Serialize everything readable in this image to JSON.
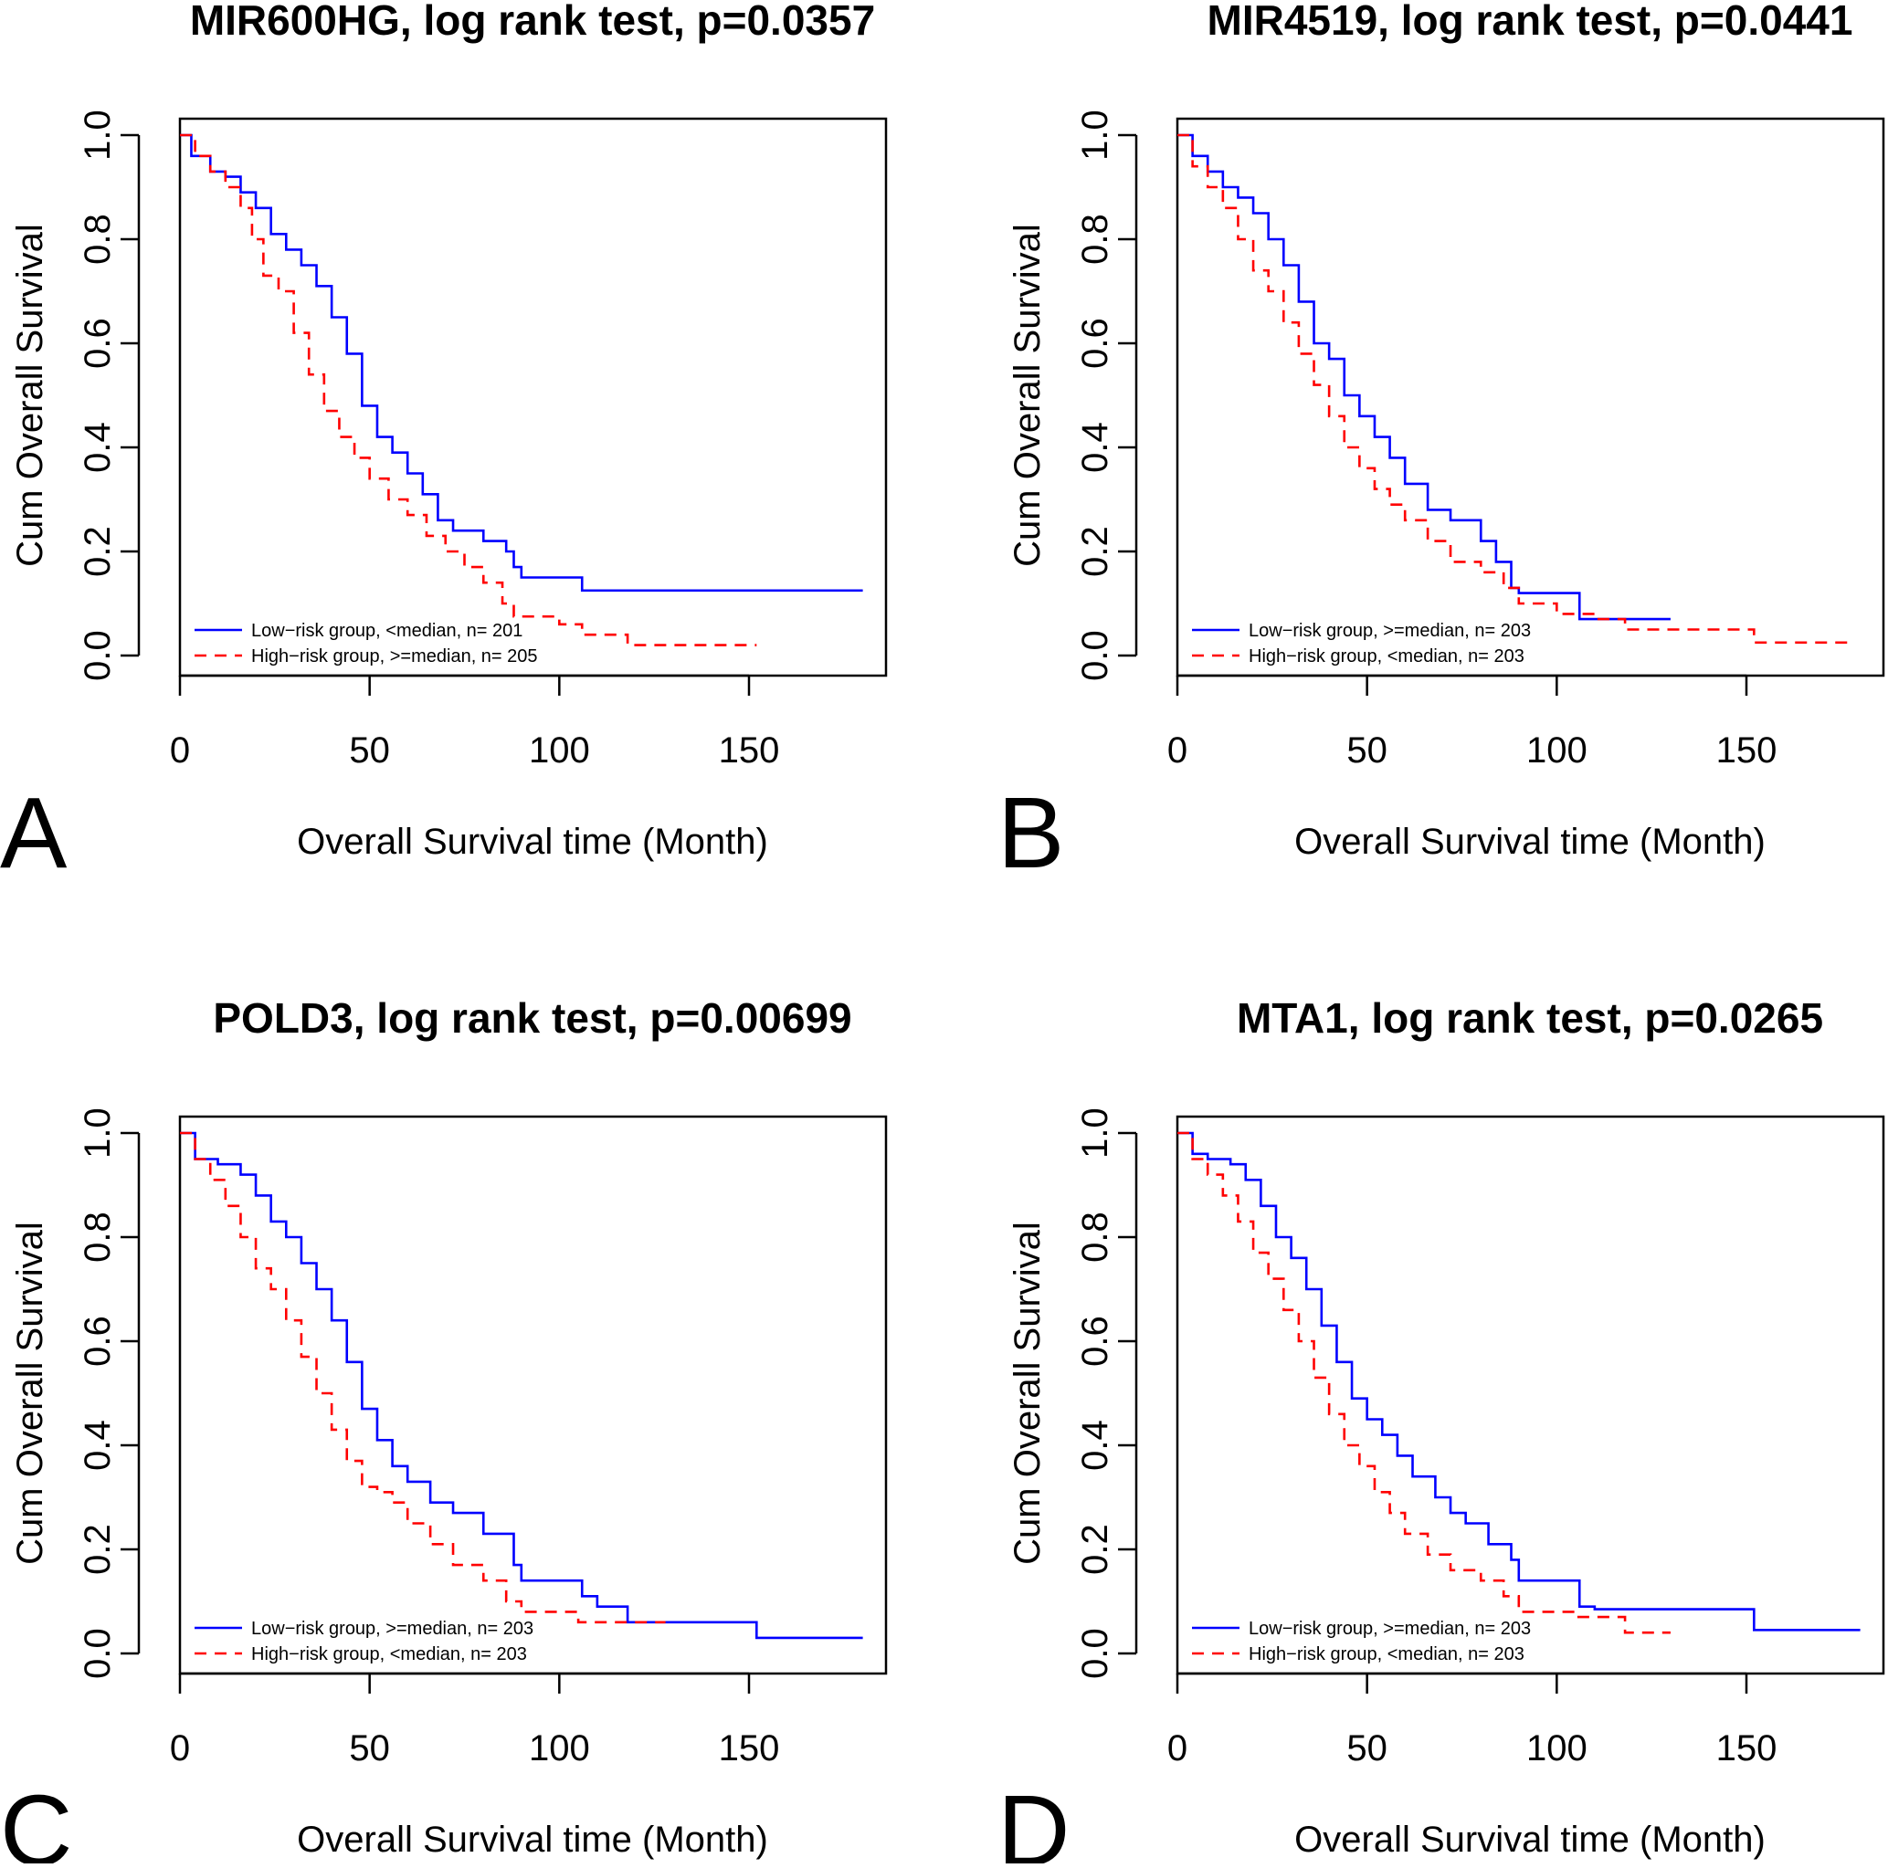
{
  "figure": {
    "colors": {
      "low": "#0000ff",
      "high": "#ff0000",
      "axis": "#000000"
    }
  },
  "chart_data": [
    {
      "type": "line",
      "panel": "A",
      "title": "MIR600HG, log rank test, p=0.0357",
      "xlabel": "Overall Survival time (Month)",
      "ylabel": "Cum Overall Survival",
      "xlim": [
        0,
        185
      ],
      "ylim": [
        0,
        1.0
      ],
      "xticks": [
        "0",
        "50",
        "100",
        "150"
      ],
      "yticks": [
        "0.0",
        "0.2",
        "0.4",
        "0.6",
        "0.8",
        "1.0"
      ],
      "series": [
        {
          "name": "Low−risk group, <median, n= 201",
          "color": "#0000ff",
          "dash": false,
          "x": [
            0,
            3,
            8,
            12,
            16,
            20,
            24,
            28,
            32,
            36,
            40,
            44,
            48,
            52,
            56,
            60,
            64,
            68,
            72,
            80,
            86,
            88,
            90,
            106,
            180
          ],
          "y": [
            1.0,
            0.96,
            0.93,
            0.92,
            0.89,
            0.86,
            0.81,
            0.78,
            0.75,
            0.71,
            0.65,
            0.58,
            0.48,
            0.42,
            0.39,
            0.35,
            0.31,
            0.26,
            0.24,
            0.22,
            0.2,
            0.17,
            0.15,
            0.125,
            0.125
          ]
        },
        {
          "name": "High−risk group, >=median, n= 205",
          "color": "#ff0000",
          "dash": true,
          "x": [
            0,
            4,
            8,
            12,
            16,
            19,
            22,
            26,
            30,
            34,
            38,
            42,
            46,
            50,
            55,
            60,
            65,
            70,
            75,
            80,
            85,
            88,
            90,
            100,
            106,
            118,
            152
          ],
          "y": [
            1.0,
            0.96,
            0.93,
            0.9,
            0.86,
            0.8,
            0.73,
            0.7,
            0.62,
            0.54,
            0.47,
            0.42,
            0.38,
            0.34,
            0.3,
            0.27,
            0.23,
            0.2,
            0.17,
            0.14,
            0.1,
            0.075,
            0.075,
            0.06,
            0.04,
            0.02,
            0.02
          ]
        }
      ]
    },
    {
      "type": "line",
      "panel": "B",
      "title": "MIR4519, log rank test, p=0.0441",
      "xlabel": "Overall Survival time (Month)",
      "ylabel": "Cum Overall Survival",
      "xlim": [
        0,
        185
      ],
      "ylim": [
        0,
        1.0
      ],
      "xticks": [
        "0",
        "50",
        "100",
        "150"
      ],
      "yticks": [
        "0.0",
        "0.2",
        "0.4",
        "0.6",
        "0.8",
        "1.0"
      ],
      "series": [
        {
          "name": "Low−risk group, >=median, n= 203",
          "color": "#0000ff",
          "dash": false,
          "x": [
            0,
            4,
            8,
            12,
            16,
            20,
            24,
            28,
            32,
            36,
            40,
            44,
            48,
            52,
            56,
            60,
            66,
            72,
            80,
            84,
            88,
            90,
            106,
            130
          ],
          "y": [
            1.0,
            0.96,
            0.93,
            0.9,
            0.88,
            0.85,
            0.8,
            0.75,
            0.68,
            0.6,
            0.57,
            0.5,
            0.46,
            0.42,
            0.38,
            0.33,
            0.28,
            0.26,
            0.22,
            0.18,
            0.13,
            0.12,
            0.07,
            0.07
          ]
        },
        {
          "name": "High−risk group, <median, n= 203",
          "color": "#ff0000",
          "dash": true,
          "x": [
            0,
            4,
            8,
            12,
            16,
            20,
            24,
            28,
            32,
            36,
            40,
            44,
            48,
            52,
            56,
            60,
            66,
            72,
            80,
            86,
            90,
            100,
            110,
            118,
            152,
            178
          ],
          "y": [
            1.0,
            0.94,
            0.9,
            0.86,
            0.8,
            0.74,
            0.7,
            0.64,
            0.58,
            0.52,
            0.46,
            0.4,
            0.36,
            0.32,
            0.29,
            0.26,
            0.22,
            0.18,
            0.16,
            0.13,
            0.1,
            0.08,
            0.07,
            0.05,
            0.025,
            0.025
          ]
        }
      ]
    },
    {
      "type": "line",
      "panel": "C",
      "title": "POLD3, log rank test, p=0.00699",
      "xlabel": "Overall Survival time (Month)",
      "ylabel": "Cum Overall Survival",
      "xlim": [
        0,
        185
      ],
      "ylim": [
        0,
        1.0
      ],
      "xticks": [
        "0",
        "50",
        "100",
        "150"
      ],
      "yticks": [
        "0.0",
        "0.2",
        "0.4",
        "0.6",
        "0.8",
        "1.0"
      ],
      "series": [
        {
          "name": "Low−risk group, >=median, n= 203",
          "color": "#0000ff",
          "dash": false,
          "x": [
            0,
            4,
            10,
            16,
            20,
            24,
            28,
            32,
            36,
            40,
            44,
            48,
            52,
            56,
            60,
            66,
            72,
            80,
            86,
            88,
            90,
            106,
            110,
            118,
            152,
            180
          ],
          "y": [
            1.0,
            0.95,
            0.94,
            0.92,
            0.88,
            0.83,
            0.8,
            0.75,
            0.7,
            0.64,
            0.56,
            0.47,
            0.41,
            0.36,
            0.33,
            0.29,
            0.27,
            0.23,
            0.23,
            0.17,
            0.14,
            0.11,
            0.09,
            0.06,
            0.03,
            0.03
          ]
        },
        {
          "name": "High−risk group, <median, n= 203",
          "color": "#ff0000",
          "dash": true,
          "x": [
            0,
            4,
            8,
            12,
            16,
            20,
            24,
            28,
            32,
            36,
            40,
            44,
            48,
            52,
            56,
            60,
            66,
            72,
            80,
            86,
            90,
            105,
            118,
            128
          ],
          "y": [
            1.0,
            0.95,
            0.91,
            0.86,
            0.8,
            0.74,
            0.7,
            0.64,
            0.57,
            0.5,
            0.43,
            0.37,
            0.32,
            0.31,
            0.29,
            0.25,
            0.21,
            0.17,
            0.14,
            0.1,
            0.08,
            0.06,
            0.06,
            0.06
          ]
        }
      ]
    },
    {
      "type": "line",
      "panel": "D",
      "title": "MTA1, log rank test, p=0.0265",
      "xlabel": "Overall Survival time (Month)",
      "ylabel": "Cum Overall Survival",
      "xlim": [
        0,
        185
      ],
      "ylim": [
        0,
        1.0
      ],
      "xticks": [
        "0",
        "50",
        "100",
        "150"
      ],
      "yticks": [
        "0.0",
        "0.2",
        "0.4",
        "0.6",
        "0.8",
        "1.0"
      ],
      "series": [
        {
          "name": "Low−risk group, >=median, n= 203",
          "color": "#0000ff",
          "dash": false,
          "x": [
            0,
            4,
            8,
            14,
            18,
            22,
            26,
            30,
            34,
            38,
            42,
            46,
            50,
            54,
            58,
            62,
            68,
            72,
            76,
            82,
            88,
            90,
            106,
            110,
            152,
            180
          ],
          "y": [
            1.0,
            0.96,
            0.95,
            0.94,
            0.91,
            0.86,
            0.8,
            0.76,
            0.7,
            0.63,
            0.56,
            0.49,
            0.45,
            0.42,
            0.38,
            0.34,
            0.3,
            0.27,
            0.25,
            0.21,
            0.18,
            0.14,
            0.09,
            0.085,
            0.045,
            0.045
          ]
        },
        {
          "name": "High−risk group, <median, n= 203",
          "color": "#ff0000",
          "dash": true,
          "x": [
            0,
            4,
            8,
            12,
            16,
            20,
            24,
            28,
            32,
            36,
            40,
            44,
            48,
            52,
            56,
            60,
            66,
            72,
            80,
            86,
            90,
            105,
            118,
            130
          ],
          "y": [
            1.0,
            0.95,
            0.92,
            0.88,
            0.83,
            0.77,
            0.72,
            0.66,
            0.6,
            0.53,
            0.46,
            0.4,
            0.36,
            0.31,
            0.27,
            0.23,
            0.19,
            0.16,
            0.14,
            0.11,
            0.08,
            0.07,
            0.04,
            0.04
          ]
        }
      ]
    }
  ]
}
